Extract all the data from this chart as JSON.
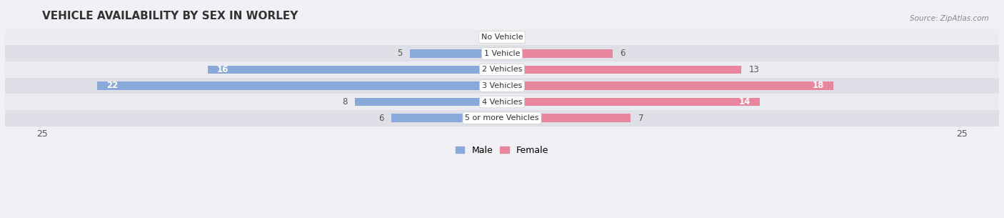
{
  "title": "VEHICLE AVAILABILITY BY SEX IN WORLEY",
  "source": "Source: ZipAtlas.com",
  "categories": [
    "No Vehicle",
    "1 Vehicle",
    "2 Vehicles",
    "3 Vehicles",
    "4 Vehicles",
    "5 or more Vehicles"
  ],
  "male": [
    0,
    5,
    16,
    22,
    8,
    6
  ],
  "female": [
    0,
    6,
    13,
    18,
    14,
    7
  ],
  "male_color": "#89aad8",
  "female_color": "#e8869e",
  "bar_height": 0.52,
  "xlim": 25,
  "row_colors": [
    "#ebebf2",
    "#dfdfe8"
  ],
  "title_fontsize": 11,
  "legend_fontsize": 9,
  "inside_label_threshold": 14
}
